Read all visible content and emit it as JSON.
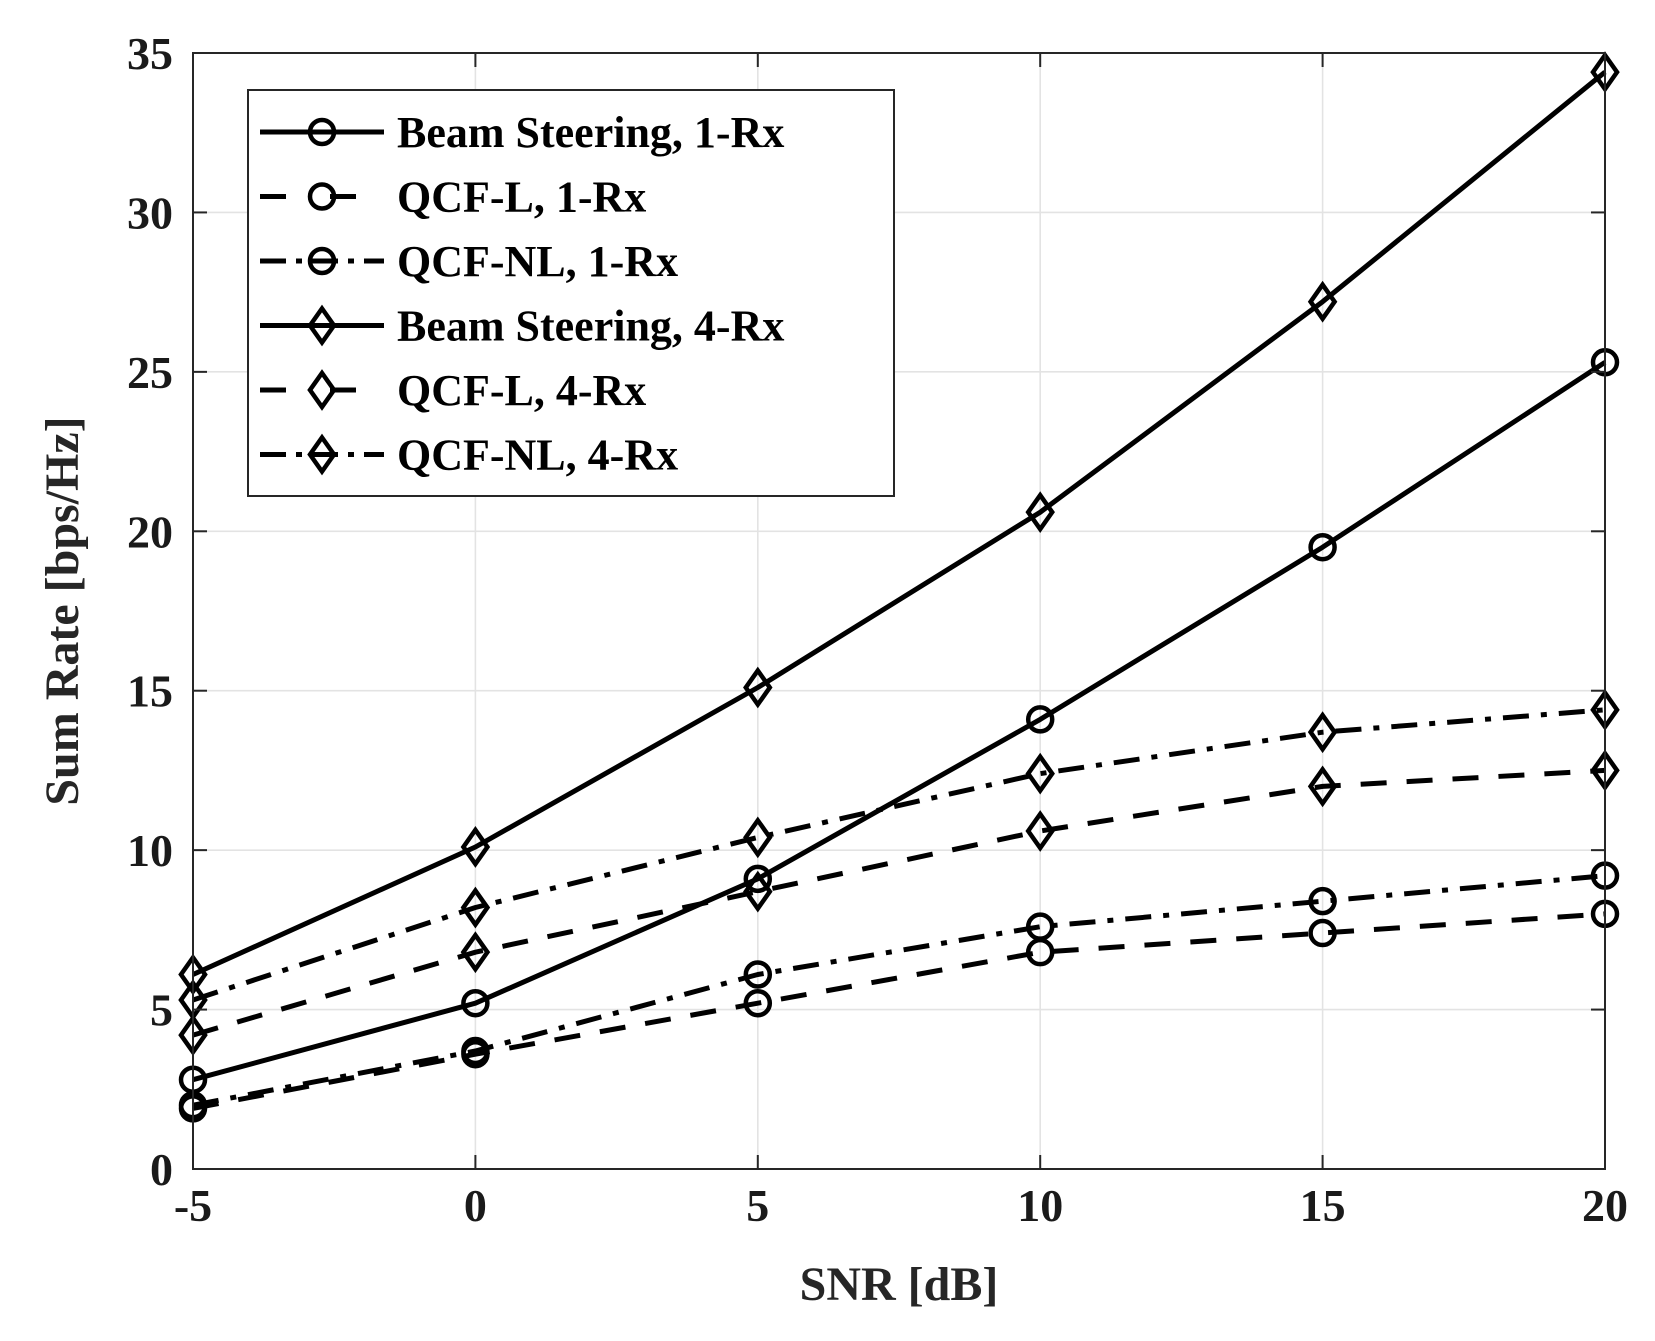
{
  "chart_data": {
    "type": "line",
    "title": "",
    "xlabel": "SNR [dB]",
    "ylabel": "Sum Rate [bps/Hz]",
    "x": [
      -5,
      0,
      5,
      10,
      15,
      20
    ],
    "xlim": [
      -5,
      20
    ],
    "ylim": [
      0,
      35
    ],
    "xticks": [
      -5,
      0,
      5,
      10,
      15,
      20
    ],
    "yticks": [
      0,
      5,
      10,
      15,
      20,
      25,
      30,
      35
    ],
    "grid": true,
    "legend_location": "top-left",
    "series": [
      {
        "name": "Beam Steering, 1-Rx",
        "line_style": "solid",
        "marker": "circle",
        "values": [
          2.8,
          5.2,
          9.1,
          14.1,
          19.5,
          25.3
        ]
      },
      {
        "name": "QCF-L, 1-Rx",
        "line_style": "dashed",
        "marker": "circle",
        "values": [
          1.9,
          3.6,
          5.2,
          6.8,
          7.4,
          8.0
        ]
      },
      {
        "name": "QCF-NL, 1-Rx",
        "line_style": "dashdot",
        "marker": "circle",
        "values": [
          2.0,
          3.7,
          6.1,
          7.6,
          8.4,
          9.2
        ]
      },
      {
        "name": "Beam Steering, 4-Rx",
        "line_style": "solid",
        "marker": "diamond",
        "values": [
          6.1,
          10.1,
          15.1,
          20.6,
          27.2,
          34.4
        ]
      },
      {
        "name": "QCF-L, 4-Rx",
        "line_style": "dashed",
        "marker": "diamond",
        "values": [
          4.2,
          6.8,
          8.7,
          10.6,
          12.0,
          12.5
        ]
      },
      {
        "name": "QCF-NL, 4-Rx",
        "line_style": "dashdot",
        "marker": "diamond",
        "values": [
          5.3,
          8.2,
          10.4,
          12.4,
          13.7,
          14.4
        ]
      }
    ]
  }
}
